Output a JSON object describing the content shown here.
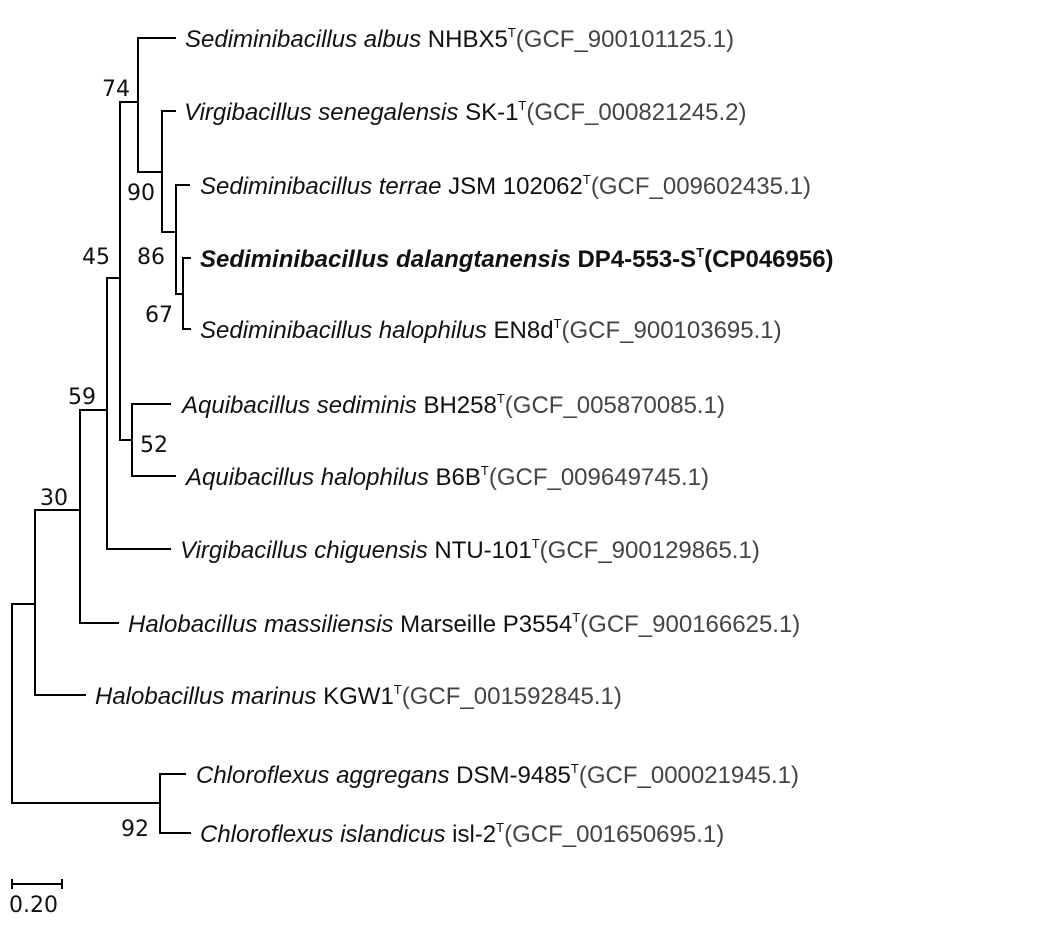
{
  "taxa": [
    {
      "genus_species": "Sediminibacillus albus",
      "strain": "NHBX5",
      "type_mark": "T",
      "accession": "(GCF_900101125.1)",
      "bold": false
    },
    {
      "genus_species": "Virgibacillus senegalensis",
      "strain": "SK-1",
      "type_mark": "T",
      "accession": "(GCF_000821245.2)",
      "bold": false
    },
    {
      "genus_species": "Sediminibacillus terrae",
      "strain": "JSM 102062",
      "type_mark": "T",
      "accession": "(GCF_009602435.1)",
      "bold": false
    },
    {
      "genus_species": "Sediminibacillus dalangtanensis",
      "strain": "DP4-553-S",
      "type_mark": "T",
      "accession": "(CP046956)",
      "bold": true
    },
    {
      "genus_species": "Sediminibacillus halophilus",
      "strain": "EN8d",
      "type_mark": "T",
      "accession": "(GCF_900103695.1)",
      "bold": false
    },
    {
      "genus_species": "Aquibacillus sediminis",
      "strain": "BH258",
      "type_mark": "T",
      "accession": "(GCF_005870085.1)",
      "bold": false
    },
    {
      "genus_species": "Aquibacillus halophilus",
      "strain": "B6B",
      "type_mark": "T",
      "accession": "(GCF_009649745.1)",
      "bold": false
    },
    {
      "genus_species": "Virgibacillus chiguensis",
      "strain": "NTU-101",
      "type_mark": "T",
      "accession": "(GCF_900129865.1)",
      "bold": false
    },
    {
      "genus_species": "Halobacillus massiliensis",
      "strain": "Marseille P3554",
      "type_mark": "T",
      "accession": "(GCF_900166625.1)",
      "bold": false
    },
    {
      "genus_species": "Halobacillus marinus",
      "strain": "KGW1",
      "type_mark": "T",
      "accession": "(GCF_001592845.1)",
      "bold": false
    },
    {
      "genus_species": "Chloroflexus aggregans",
      "strain": "DSM-9485",
      "type_mark": "T",
      "accession": "(GCF_000021945.1)",
      "bold": false
    },
    {
      "genus_species": "Chloroflexus islandicus",
      "strain": "isl-2",
      "type_mark": "T",
      "accession": "(GCF_001650695.1)",
      "bold": false
    }
  ],
  "bootstrap": {
    "n74": "74",
    "n90": "90",
    "n86": "86",
    "n67": "67",
    "n45": "45",
    "n59": "59",
    "n52": "52",
    "n30": "30",
    "n92": "92"
  },
  "scale_bar": {
    "label": "0.20"
  }
}
